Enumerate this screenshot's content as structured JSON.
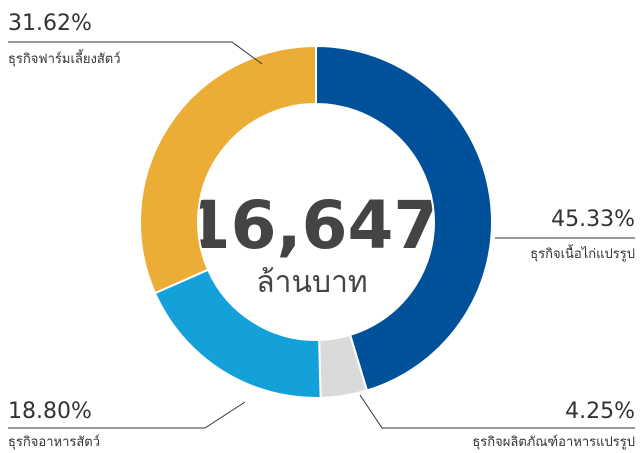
{
  "chart_data": {
    "type": "donut",
    "center_value": "16,647",
    "center_unit": "ล้านบาท",
    "categories": [
      "ธุรกิจเนื้อไก่แปรรูป",
      "ธุรกิจผลิตภัณฑ์อาหารแปรรูป",
      "ธุรกิจอาหารสัตว์",
      "ธุรกิจฟาร์มเลี้ยงสัตว์"
    ],
    "values": [
      45.33,
      4.25,
      18.8,
      31.62
    ],
    "value_labels": [
      "45.33%",
      "4.25%",
      "18.80%",
      "31.62%"
    ],
    "colors": [
      "#00519a",
      "#d9dadb",
      "#14a1d9",
      "#ecad37"
    ]
  }
}
